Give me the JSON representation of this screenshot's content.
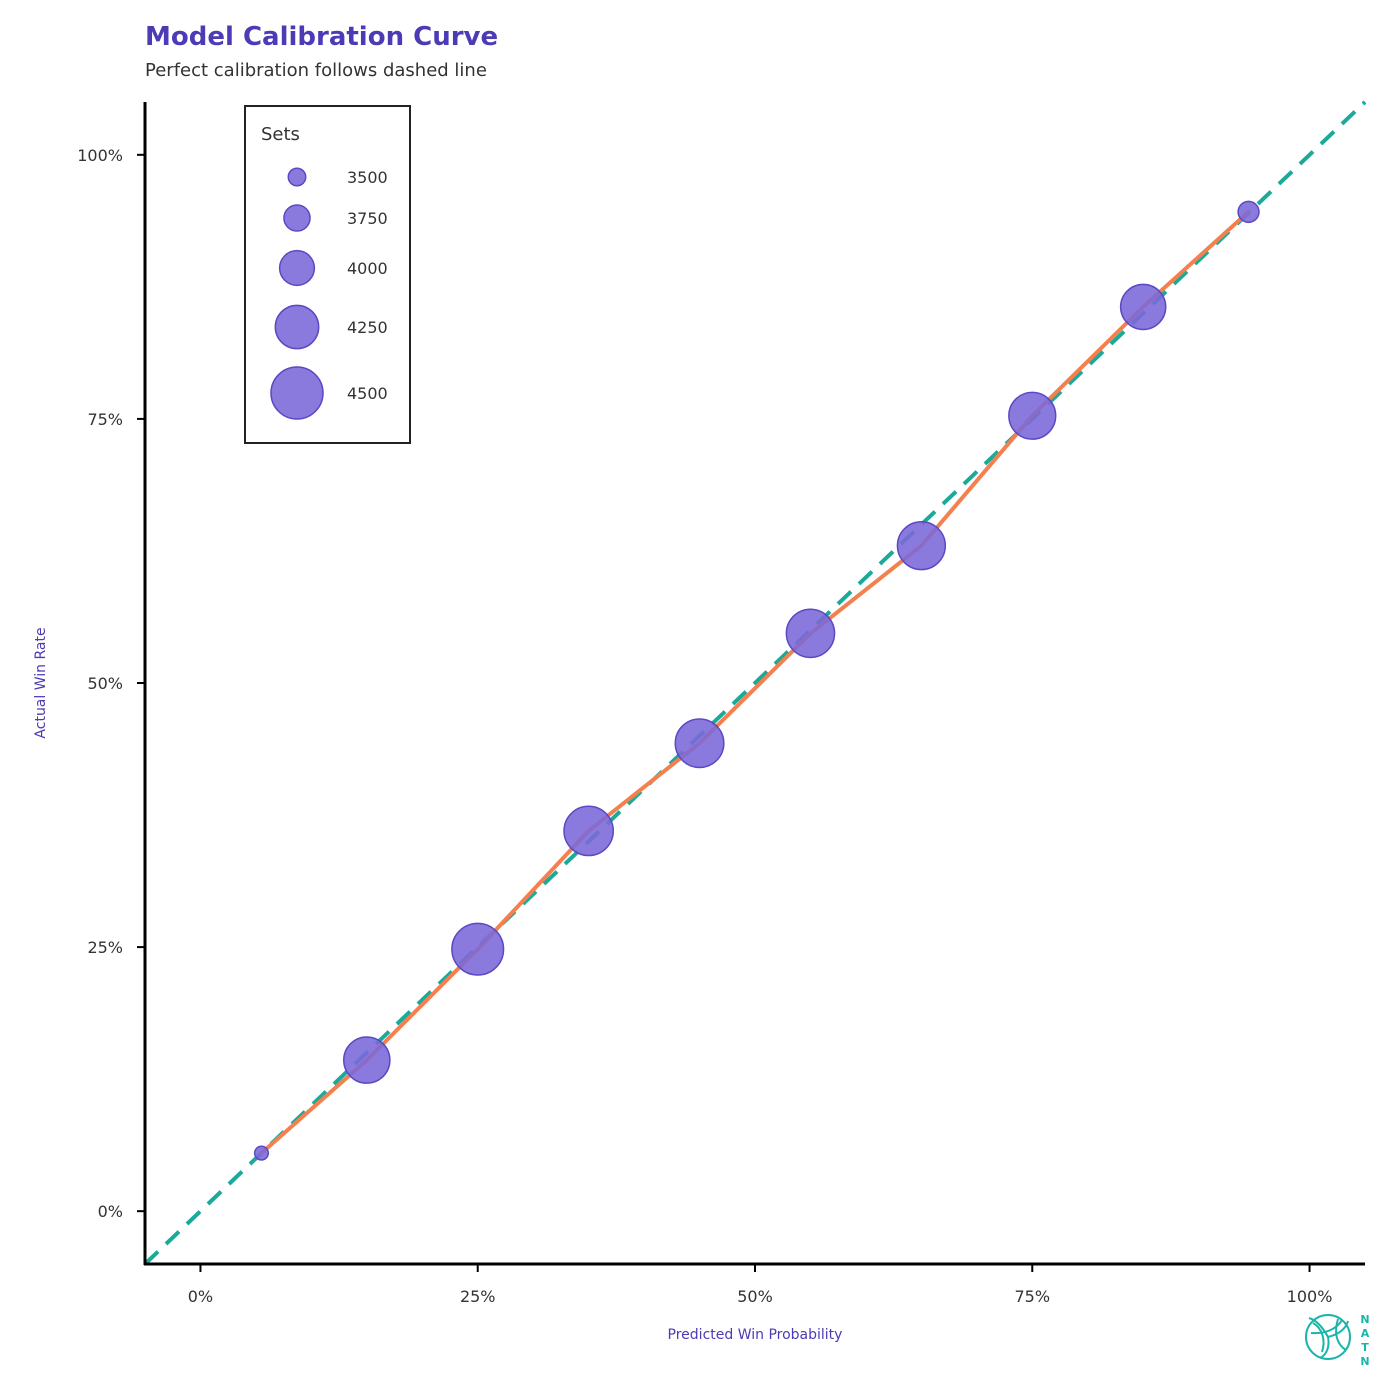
{
  "colors": {
    "title": "#4b3bb5",
    "text": "#333333",
    "point_fill": "#7b68d8",
    "point_stroke": "#5a48c4",
    "calibration_line": "#f4804f",
    "reference_line": "#1aaa99",
    "axis": "#000000",
    "logo": "#1ab5aa"
  },
  "logo": {
    "letters": [
      "N",
      "A",
      "T",
      "N"
    ],
    "icon": "volleyball-icon"
  },
  "chart_data": {
    "type": "scatter",
    "title": "Model Calibration Curve",
    "subtitle": "Perfect calibration follows dashed line",
    "xlabel": "Predicted Win Probability",
    "ylabel": "Actual Win Rate",
    "xlim": [
      -0.05,
      1.05
    ],
    "ylim": [
      -0.05,
      1.05
    ],
    "xticks": [
      0,
      0.25,
      0.5,
      0.75,
      1.0
    ],
    "xtick_labels": [
      "0%",
      "25%",
      "50%",
      "75%",
      "100%"
    ],
    "yticks": [
      0,
      0.25,
      0.5,
      0.75,
      1.0
    ],
    "ytick_labels": [
      "0%",
      "25%",
      "50%",
      "75%",
      "100%"
    ],
    "grid": false,
    "reference_line": {
      "style": "dashed",
      "x": [
        -0.05,
        1.05
      ],
      "y": [
        -0.05,
        1.05
      ]
    },
    "series": [
      {
        "x": [
          0.055,
          0.15,
          0.25,
          0.35,
          0.45,
          0.55,
          0.65,
          0.75,
          0.85,
          0.945
        ],
        "y": [
          0.055,
          0.143,
          0.248,
          0.36,
          0.443,
          0.547,
          0.63,
          0.753,
          0.856,
          0.946
        ],
        "sets": [
          3390,
          4330,
          4490,
          4420,
          4400,
          4390,
          4380,
          4350,
          4300,
          3600
        ]
      }
    ],
    "legend": {
      "title": "Sets",
      "position": "top-left",
      "entries": [
        {
          "label": "3500",
          "value": 3500
        },
        {
          "label": "3750",
          "value": 3750
        },
        {
          "label": "4000",
          "value": 4000
        },
        {
          "label": "4250",
          "value": 4250
        },
        {
          "label": "4500",
          "value": 4500
        }
      ]
    }
  }
}
